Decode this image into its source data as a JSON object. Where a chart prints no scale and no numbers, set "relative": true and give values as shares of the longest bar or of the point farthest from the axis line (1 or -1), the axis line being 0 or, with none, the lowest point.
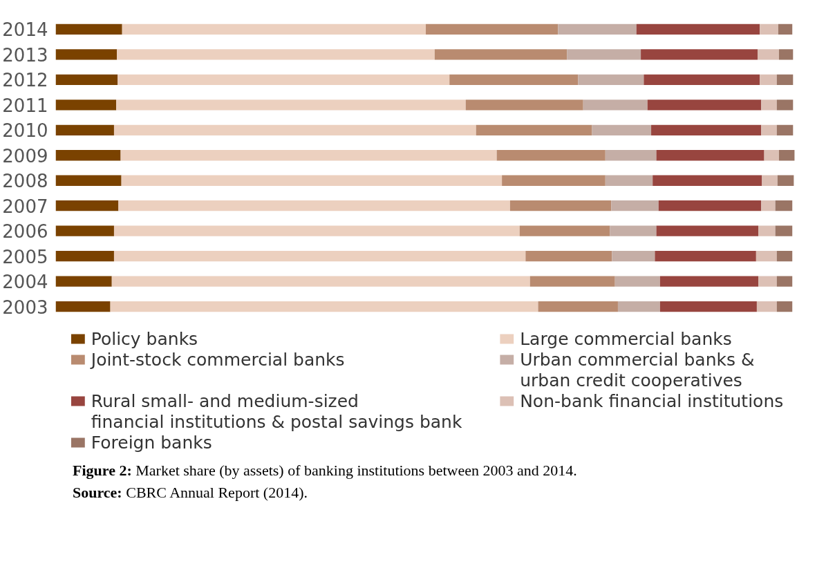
{
  "chart_data": {
    "type": "bar",
    "orientation": "horizontal",
    "stacked": true,
    "relative": true,
    "grid": false,
    "legend": "bottom",
    "categories": [
      "2014",
      "2013",
      "2012",
      "2011",
      "2010",
      "2009",
      "2008",
      "2007",
      "2006",
      "2005",
      "2004",
      "2003"
    ],
    "series": [
      {
        "name": "Policy banks",
        "color": "#7a4200",
        "values": [
          0.09,
          0.083,
          0.084,
          0.082,
          0.079,
          0.088,
          0.089,
          0.085,
          0.079,
          0.079,
          0.076,
          0.074
        ]
      },
      {
        "name": "Large commercial banks",
        "color": "#ecd0bf",
        "values": [
          0.411,
          0.43,
          0.449,
          0.473,
          0.49,
          0.509,
          0.515,
          0.53,
          0.549,
          0.557,
          0.566,
          0.579
        ]
      },
      {
        "name": "Joint-stock commercial banks",
        "color": "#b98b70",
        "values": [
          0.179,
          0.179,
          0.174,
          0.159,
          0.157,
          0.147,
          0.14,
          0.137,
          0.122,
          0.117,
          0.115,
          0.108
        ]
      },
      {
        "name": "Urban commercial banks &\nurban credit cooperatives",
        "color": "#c5aea6",
        "values": [
          0.106,
          0.1,
          0.089,
          0.087,
          0.08,
          0.069,
          0.064,
          0.064,
          0.063,
          0.058,
          0.061,
          0.057
        ]
      },
      {
        "name": "Rural small- and medium-sized\nfinancial institutions & postal savings bank",
        "color": "#98453f",
        "values": [
          0.167,
          0.158,
          0.157,
          0.154,
          0.149,
          0.146,
          0.148,
          0.139,
          0.138,
          0.137,
          0.133,
          0.131
        ]
      },
      {
        "name": "Non-bank financial institutions",
        "color": "#dcc0b5",
        "values": [
          0.025,
          0.029,
          0.023,
          0.021,
          0.021,
          0.02,
          0.021,
          0.019,
          0.023,
          0.028,
          0.025,
          0.027
        ]
      },
      {
        "name": "Foreign banks",
        "color": "#9a7565",
        "values": [
          0.019,
          0.019,
          0.022,
          0.022,
          0.022,
          0.021,
          0.022,
          0.023,
          0.023,
          0.021,
          0.021,
          0.021
        ]
      }
    ],
    "annotations": [
      "Figure 2: Market share (by assets) of banking institutions between 2003 and 2014.",
      "Source: CBRC Annual Report (2014)."
    ]
  }
}
